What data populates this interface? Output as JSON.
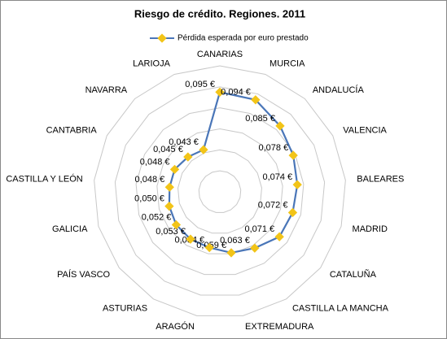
{
  "chart_data": {
    "type": "radar",
    "title": "Riesgo de crédito. Regiones. 2011",
    "categories": [
      "CANARIAS",
      "MURCIA",
      "ANDALUCÍA",
      "VALENCIA",
      "BALEARES",
      "MADRID",
      "CATALUÑA",
      "CASTILLA LA MANCHA",
      "EXTREMADURA",
      "ARAGÓN",
      "ASTURIAS",
      "PAÍS VASCO",
      "GALICIA",
      "CASTILLA  Y LEÓN",
      "CANTABRIA",
      "NAVARRA",
      "LARIOJA"
    ],
    "series": [
      {
        "name": "Pérdida esperada por euro prestado",
        "color": "#4a76b8",
        "marker_color": "#f2c418",
        "values": [
          0.095,
          0.094,
          0.085,
          0.078,
          0.074,
          0.072,
          0.071,
          0.063,
          0.059,
          0.054,
          0.053,
          0.052,
          0.05,
          0.048,
          0.048,
          0.045,
          0.043
        ],
        "value_labels": [
          "0,095 €",
          "0,094 €",
          "0,085 €",
          "0,078 €",
          "0,074 €",
          "0,072 €",
          "0,071 €",
          "0,063 €",
          "0,059 €",
          "0,054 €",
          "0,053 €",
          "0,052 €",
          "0,050 €",
          "0,048 €",
          "0,048 €",
          "0,045 €",
          "0,043 €"
        ]
      }
    ],
    "ylim": [
      0,
      0.12
    ],
    "yticks": [
      0.02,
      0.04,
      0.06,
      0.08,
      0.1,
      0.12
    ],
    "grid": true,
    "legend": "top"
  }
}
